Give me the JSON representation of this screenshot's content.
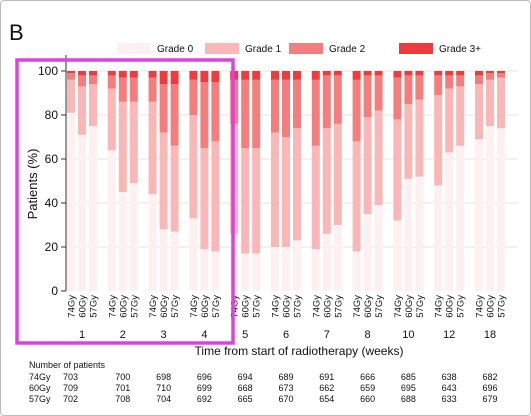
{
  "panel_label": "B",
  "chart_data": {
    "type": "bar",
    "stacked": true,
    "ylabel": "Patients (%)",
    "xlabel": "Time from start of radiotherapy (weeks)",
    "ylim": [
      0,
      105
    ],
    "yticks": [
      0,
      20,
      40,
      60,
      80,
      100
    ],
    "grid": true,
    "legend": {
      "position": "top",
      "entries": [
        "Grade 0",
        "Grade 1",
        "Grade 2",
        "Grade 3+"
      ]
    },
    "colors": {
      "Grade 0": "#fdf0f0",
      "Grade 1": "#f9b7b7",
      "Grade 2": "#f47e7e",
      "Grade 3+": "#ef3b3b",
      "highlight": "#e040e0"
    },
    "arms": [
      "74Gy",
      "60Gy",
      "57Gy"
    ],
    "weeks": [
      "1",
      "2",
      "3",
      "4",
      "5",
      "6",
      "7",
      "8",
      "10",
      "12",
      "18"
    ],
    "series": [
      {
        "name": "Grade 0",
        "values": [
          [
            81,
            71,
            75
          ],
          [
            64,
            45,
            49
          ],
          [
            44,
            28,
            27
          ],
          [
            33,
            19,
            18
          ],
          [
            26,
            17,
            17
          ],
          [
            20,
            20,
            23
          ],
          [
            19,
            26,
            30
          ],
          [
            18,
            35,
            39
          ],
          [
            32,
            51,
            52
          ],
          [
            48,
            63,
            66
          ],
          [
            69,
            75,
            74
          ]
        ]
      },
      {
        "name": "Grade 1",
        "values": [
          [
            15,
            22,
            19
          ],
          [
            28,
            41,
            37
          ],
          [
            42,
            44,
            39
          ],
          [
            47,
            46,
            50
          ],
          [
            50,
            48,
            48
          ],
          [
            52,
            50,
            51
          ],
          [
            47,
            48,
            46
          ],
          [
            50,
            44,
            43
          ],
          [
            46,
            34,
            35
          ],
          [
            41,
            29,
            27
          ],
          [
            25,
            21,
            23
          ]
        ]
      },
      {
        "name": "Grade 2",
        "values": [
          [
            3,
            5,
            4
          ],
          [
            6,
            11,
            11
          ],
          [
            11,
            22,
            28
          ],
          [
            16,
            30,
            27
          ],
          [
            20,
            31,
            31
          ],
          [
            24,
            26,
            22
          ],
          [
            30,
            24,
            22
          ],
          [
            28,
            19,
            16
          ],
          [
            19,
            13,
            11
          ],
          [
            9,
            6,
            5
          ],
          [
            4,
            3,
            2
          ]
        ]
      },
      {
        "name": "Grade 3+",
        "values": [
          [
            1,
            2,
            2
          ],
          [
            2,
            3,
            3
          ],
          [
            3,
            6,
            6
          ],
          [
            4,
            5,
            5
          ],
          [
            4,
            4,
            4
          ],
          [
            4,
            4,
            4
          ],
          [
            4,
            2,
            2
          ],
          [
            4,
            2,
            2
          ],
          [
            3,
            2,
            2
          ],
          [
            2,
            2,
            2
          ],
          [
            2,
            1,
            1
          ]
        ]
      }
    ],
    "patients_table": {
      "header": "Number of patients",
      "rows": [
        {
          "arm": "74Gy",
          "values": [
            703,
            700,
            698,
            696,
            694,
            689,
            691,
            666,
            685,
            638,
            682
          ]
        },
        {
          "arm": "60Gy",
          "values": [
            709,
            701,
            710,
            699,
            668,
            673,
            662,
            659,
            695,
            643,
            696
          ]
        },
        {
          "arm": "57Gy",
          "values": [
            702,
            708,
            704,
            692,
            665,
            670,
            654,
            660,
            688,
            633,
            679
          ]
        }
      ]
    }
  }
}
